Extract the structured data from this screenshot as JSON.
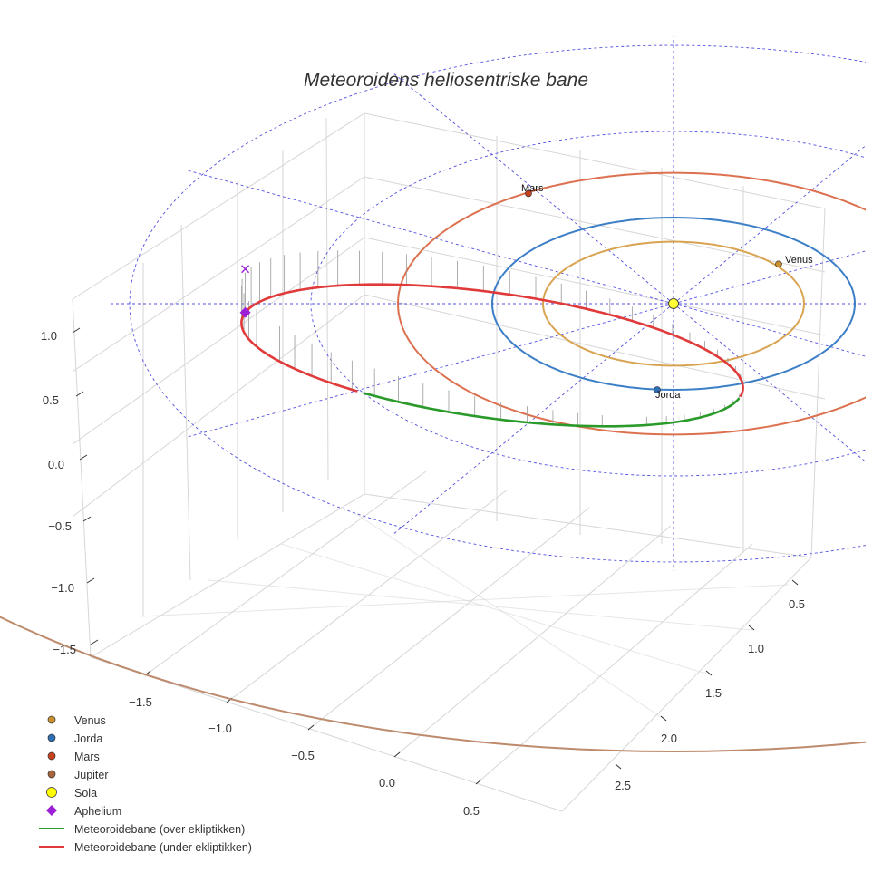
{
  "chart_data": {
    "type": "scatter3d",
    "title": "Meteoroidens heliosentriske bane",
    "axes": {
      "x": {
        "ticks": [
          "−1.5",
          "−1.0",
          "−0.5",
          "0.0",
          "0.5"
        ]
      },
      "y": {
        "ticks": [
          "0.5",
          "1.0",
          "1.5",
          "2.0",
          "2.5"
        ]
      },
      "z": {
        "ticks": [
          "1.0",
          "0.5",
          "0.0",
          "−0.5",
          "−1.0",
          "−1.5"
        ]
      }
    },
    "planets": [
      {
        "name": "Venus",
        "label": "Venus",
        "orbit_radius_au": 0.72,
        "color": "#c8902f",
        "orbit_color": "#d9a452"
      },
      {
        "name": "Jorda",
        "label": "Jorda",
        "orbit_radius_au": 1.0,
        "color": "#2e6fb5",
        "orbit_color": "#3c7fc6"
      },
      {
        "name": "Mars",
        "label": "Mars",
        "orbit_radius_au": 1.52,
        "color": "#c8421e",
        "orbit_color": "#dc7150"
      },
      {
        "name": "Jupiter",
        "label": "",
        "orbit_radius_au": 5.2,
        "color": "#b5714a",
        "orbit_color": "#bd8a6c"
      }
    ],
    "sun": {
      "name": "Sola",
      "color": "#ffff33"
    },
    "aphelion": {
      "name": "Aphelium",
      "color": "#9b1fd6"
    },
    "meteoroid_orbit": {
      "above": {
        "name": "Meteoroidebane (over ekliptikken)",
        "color": "#2a9a2a"
      },
      "below": {
        "name": "Meteoroidebane (under ekliptikken)",
        "color": "#e03a3a"
      }
    },
    "legend": {
      "position": "bottom-left",
      "entries": [
        {
          "label": "Venus",
          "marker": "circle",
          "color": "#c8902f"
        },
        {
          "label": "Jorda",
          "marker": "circle",
          "color": "#2e6fb5"
        },
        {
          "label": "Mars",
          "marker": "circle",
          "color": "#c8421e"
        },
        {
          "label": "Jupiter",
          "marker": "circle",
          "color": "#a8643c"
        },
        {
          "label": "Sola",
          "marker": "circle-big",
          "color": "#ffff00"
        },
        {
          "label": "Aphelium",
          "marker": "diamond",
          "color": "#9b1fd6"
        },
        {
          "label": "Meteoroidebane (over ekliptikken)",
          "marker": "line",
          "color": "#2a9a2a"
        },
        {
          "label": "Meteoroidebane (under ekliptikken)",
          "marker": "line",
          "color": "#e03a3a"
        }
      ]
    }
  }
}
